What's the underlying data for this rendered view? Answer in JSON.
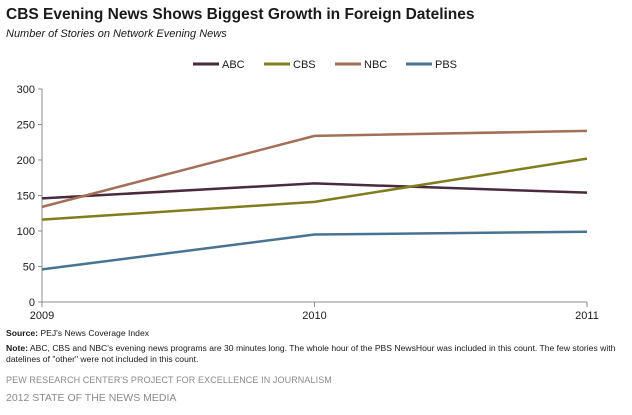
{
  "header": {
    "title": "CBS Evening News Shows Biggest Growth in Foreign Datelines",
    "subtitle": "Number of Stories on Network Evening News"
  },
  "chart_data": {
    "type": "line",
    "x": [
      "2009",
      "2010",
      "2011"
    ],
    "ylim": [
      0,
      300
    ],
    "yticks": [
      0,
      50,
      100,
      150,
      200,
      250,
      300
    ],
    "grid": false,
    "legend_position": "top",
    "series": [
      {
        "name": "ABC",
        "color": "#4a2a3e",
        "values": [
          146,
          167,
          154
        ]
      },
      {
        "name": "CBS",
        "color": "#7f7d1e",
        "values": [
          116,
          141,
          202
        ]
      },
      {
        "name": "NBC",
        "color": "#a26f58",
        "values": [
          134,
          234,
          241
        ]
      },
      {
        "name": "PBS",
        "color": "#4a7292",
        "values": [
          46,
          95,
          99
        ]
      }
    ]
  },
  "footer": {
    "source_label": "Source:",
    "source_text": " PEJ's News Coverage Index",
    "note_label": "Note:",
    "note_text": " ABC, CBS and NBC's evening news programs are 30 minutes long. The whole hour of the PBS NewsHour was included in this count. The few stories with datelines of \"other\" were not included in this count.",
    "org": "PEW RESEARCH CENTER'S PROJECT FOR EXCELLENCE IN JOURNALISM",
    "report": "2012 STATE OF THE NEWS MEDIA"
  }
}
